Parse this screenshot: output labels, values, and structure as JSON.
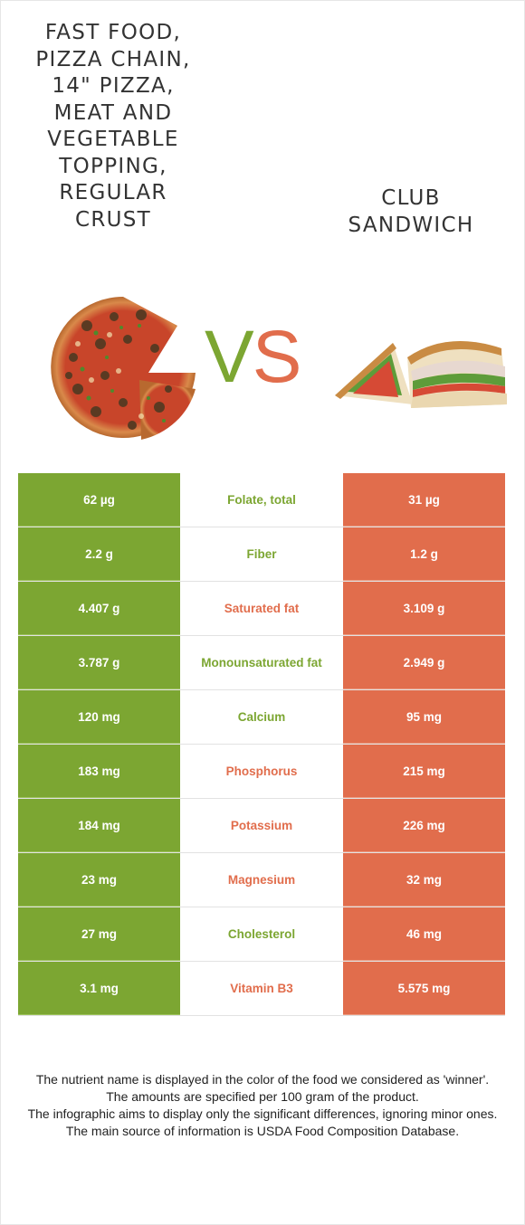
{
  "left_food": {
    "name": "FAST FOOD,\nPIZZA CHAIN,\n14\" PIZZA,\nMEAT AND\nVEGETABLE\nTOPPING,\nREGULAR\nCRUST",
    "color": "#7ca632"
  },
  "right_food": {
    "name": "CLUB\nSANDWICH",
    "color": "#e16d4c"
  },
  "vs": {
    "v": "V",
    "s": "S"
  },
  "rows": [
    {
      "left": "62 µg",
      "nutrient": "Folate, total",
      "right": "31 µg",
      "winner": "left"
    },
    {
      "left": "2.2 g",
      "nutrient": "Fiber",
      "right": "1.2 g",
      "winner": "left"
    },
    {
      "left": "4.407 g",
      "nutrient": "Saturated fat",
      "right": "3.109 g",
      "winner": "right"
    },
    {
      "left": "3.787 g",
      "nutrient": "Monounsaturated fat",
      "right": "2.949 g",
      "winner": "left"
    },
    {
      "left": "120 mg",
      "nutrient": "Calcium",
      "right": "95 mg",
      "winner": "left"
    },
    {
      "left": "183 mg",
      "nutrient": "Phosphorus",
      "right": "215 mg",
      "winner": "right"
    },
    {
      "left": "184 mg",
      "nutrient": "Potassium",
      "right": "226 mg",
      "winner": "right"
    },
    {
      "left": "23 mg",
      "nutrient": "Magnesium",
      "right": "32 mg",
      "winner": "right"
    },
    {
      "left": "27 mg",
      "nutrient": "Cholesterol",
      "right": "46 mg",
      "winner": "left"
    },
    {
      "left": "3.1 mg",
      "nutrient": "Vitamin B3",
      "right": "5.575 mg",
      "winner": "right"
    }
  ],
  "notes": [
    "The nutrient name is displayed in the color of the food we considered as 'winner'.",
    "The amounts are specified per 100 gram of the product.",
    "The infographic aims to display only the significant differences, ignoring minor ones.",
    "The main source of information is USDA Food Composition Database."
  ]
}
